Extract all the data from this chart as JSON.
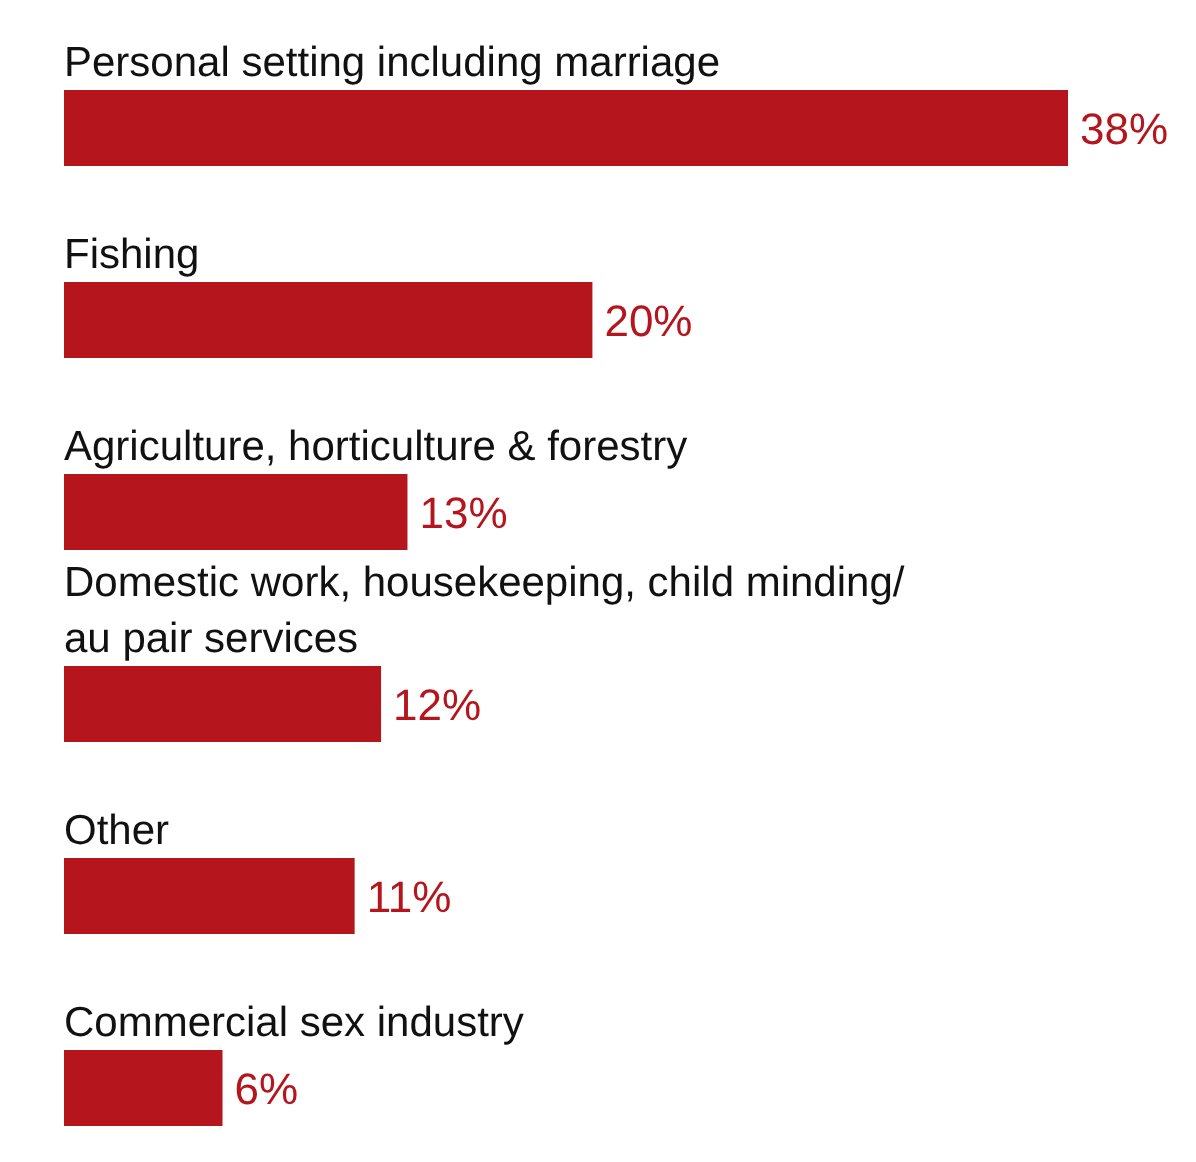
{
  "chart_data": {
    "type": "bar",
    "orientation": "horizontal",
    "color": "#b5161e",
    "categories": [
      "Personal setting including marriage",
      "Fishing",
      "Agriculture, horticulture & forestry",
      "Domestic work, housekeeping, child minding/ au pair services",
      "Other",
      "Commercial sex industry"
    ],
    "values": [
      38,
      20,
      13,
      12,
      11,
      6
    ],
    "value_labels": [
      "38%",
      "20%",
      "13%",
      "12%",
      "11%",
      "6%"
    ]
  }
}
